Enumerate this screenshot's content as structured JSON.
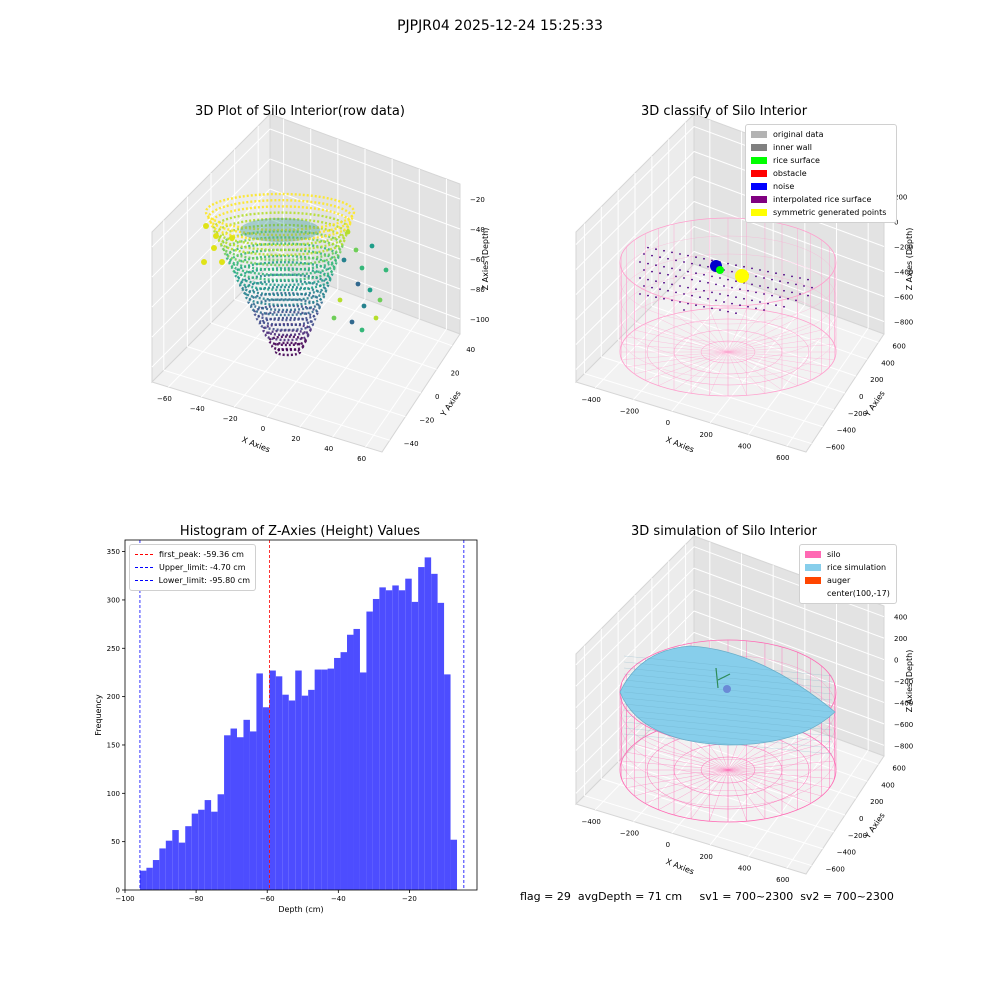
{
  "figure_title": "PJPJR04 2025-12-24 15:25:33",
  "status_line": "flag = 29  avgDepth = 71 cm     sv1 = 700~2300  sv2 = 700~2300",
  "panels": {
    "p1": {
      "title": "3D Plot of Silo Interior(row data)",
      "xlabel": "X Axies",
      "ylabel": "Y Axies",
      "zlabel": "Z Axies (Depth)",
      "xticks": [
        "−60",
        "−40",
        "−20",
        "0",
        "20",
        "40",
        "60"
      ],
      "yticks": [
        "−40",
        "−20",
        "0",
        "20",
        "40"
      ],
      "zticks": [
        "−20",
        "−40",
        "−60",
        "−80",
        "−100"
      ]
    },
    "p2": {
      "title": "3D classify of Silo Interior",
      "xlabel": "X Axies",
      "ylabel": "Y Axies",
      "zlabel": "Z Axies (Depth)",
      "xticks": [
        "−400",
        "−200",
        "0",
        "200",
        "400",
        "600"
      ],
      "yticks": [
        "−600",
        "−400",
        "−200",
        "0",
        "200",
        "400",
        "600"
      ],
      "zticks": [
        "200",
        "0",
        "−200",
        "−400",
        "−600",
        "−800"
      ],
      "legend": [
        {
          "label": "original data",
          "color": "#b3b3b3"
        },
        {
          "label": "inner wall",
          "color": "#808080"
        },
        {
          "label": "rice surface",
          "color": "#00ff00"
        },
        {
          "label": "obstacle",
          "color": "#ff0000"
        },
        {
          "label": "noise",
          "color": "#0000ff"
        },
        {
          "label": "interpolated rice surface",
          "color": "#800080"
        },
        {
          "label": "symmetric generated points",
          "color": "#ffff00"
        }
      ]
    },
    "p4": {
      "title": "3D simulation of Silo Interior",
      "xlabel": "X Axies",
      "ylabel": "Y Axies",
      "zlabel": "Z Axies (Depth)",
      "xticks": [
        "−400",
        "−200",
        "0",
        "200",
        "400",
        "600"
      ],
      "yticks": [
        "−600",
        "−400",
        "−200",
        "0",
        "200",
        "400",
        "600"
      ],
      "zticks": [
        "400",
        "200",
        "0",
        "−200",
        "−400",
        "−600",
        "−800"
      ],
      "legend": [
        {
          "label": "silo",
          "color": "#ff69b4"
        },
        {
          "label": "rice simulation",
          "color": "#87ceeb"
        },
        {
          "label": "auger",
          "color": "#ff4500"
        },
        {
          "label": "center(100,-17)",
          "color": ""
        }
      ]
    }
  },
  "chart_data": [
    {
      "type": "histogram",
      "title": "Histogram of Z-Axies (Height) Values",
      "xlabel": "Depth (cm)",
      "ylabel": "Frequency",
      "xlim": [
        -100,
        -1
      ],
      "ylim": [
        0,
        362
      ],
      "xticks": [
        -100,
        -80,
        -60,
        -40,
        -20
      ],
      "yticks": [
        0,
        50,
        100,
        150,
        200,
        250,
        300,
        350
      ],
      "bar_color": "#4d4dff",
      "bin_start": -95.8,
      "bin_width": 1.82,
      "counts": [
        20,
        23,
        31,
        43,
        51,
        62,
        49,
        66,
        79,
        83,
        93,
        81,
        99,
        160,
        167,
        158,
        176,
        164,
        224,
        189,
        227,
        221,
        202,
        196,
        227,
        201,
        207,
        228,
        228,
        229,
        240,
        246,
        264,
        270,
        225,
        288,
        301,
        313,
        310,
        315,
        310,
        322,
        298,
        334,
        344,
        327,
        297,
        223,
        52
      ],
      "vlines": [
        {
          "label": "first_peak: -59.36 cm",
          "x": -59.36,
          "color": "#ff0000"
        },
        {
          "label": "Upper_limit: -4.70 cm",
          "x": -4.7,
          "color": "#0000ff"
        },
        {
          "label": "Lower_limit: -95.80 cm",
          "x": -95.8,
          "color": "#0000ff"
        }
      ],
      "grid": false,
      "legend_position": "upper-left"
    }
  ]
}
